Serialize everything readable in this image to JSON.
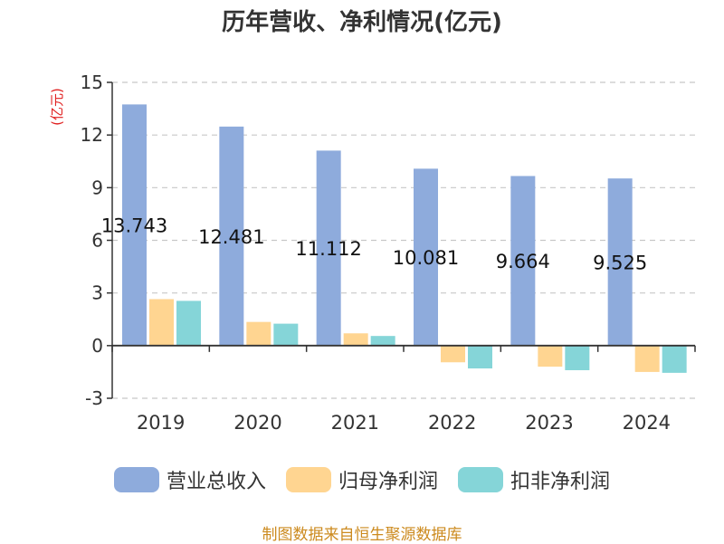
{
  "chart_data": {
    "type": "bar",
    "title": "历年营收、净利情况(亿元)",
    "ylabel": "(亿元)",
    "ylim": [
      -3,
      15
    ],
    "yticks": [
      -3,
      0,
      3,
      6,
      9,
      12,
      15
    ],
    "grid": true,
    "legend_position": "bottom",
    "categories": [
      "2019",
      "2020",
      "2021",
      "2022",
      "2023",
      "2024"
    ],
    "series": [
      {
        "name": "营业总收入",
        "color": "#8eabdc",
        "values": [
          13.743,
          12.481,
          11.112,
          10.081,
          9.664,
          9.525
        ],
        "labels": [
          "13.743",
          "12.481",
          "11.112",
          "10.081",
          "9.664",
          "9.525"
        ]
      },
      {
        "name": "归母净利润",
        "color": "#ffd591",
        "values": [
          2.65,
          1.35,
          0.7,
          -0.95,
          -1.2,
          -1.5
        ]
      },
      {
        "name": "扣非净利润",
        "color": "#85d5d8",
        "values": [
          2.55,
          1.25,
          0.55,
          -1.3,
          -1.4,
          -1.55
        ]
      }
    ]
  },
  "footer": "制图数据来自恒生聚源数据库"
}
